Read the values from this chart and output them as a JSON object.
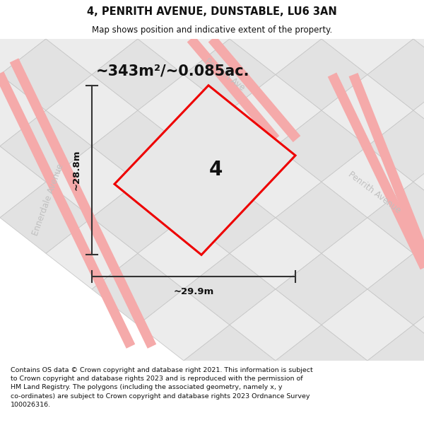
{
  "title": "4, PENRITH AVENUE, DUNSTABLE, LU6 3AN",
  "subtitle": "Map shows position and indicative extent of the property.",
  "footer_line1": "Contains OS data © Crown copyright and database right 2021. This information is subject",
  "footer_line2": "to Crown copyright and database rights 2023 and is reproduced with the permission of",
  "footer_line3": "HM Land Registry. The polygons (including the associated geometry, namely x, y",
  "footer_line4": "co-ordinates) are subject to Crown copyright and database rights 2023 Ordnance Survey",
  "footer_line5": "100026316.",
  "area_label": "~343m²/~0.085ac.",
  "width_label": "~29.9m",
  "height_label": "~28.8m",
  "plot_number": "4",
  "plot_outline_color": "#ee0000",
  "plot_fill_color": "#e8e8e8",
  "dim_line_color": "#333333",
  "road_color": "#f5aaaa",
  "hex_edge_color": "#cccccc",
  "hex_fill_a": "#ececec",
  "hex_fill_b": "#e0e0e0",
  "watermark_color": "#c0c0c0",
  "title_fontsize": 10.5,
  "subtitle_fontsize": 8.5,
  "footer_fontsize": 6.8,
  "area_fontsize": 15,
  "plot_label_fontsize": 20,
  "dim_fontsize": 9.5,
  "watermark_fontsize": 8.5
}
